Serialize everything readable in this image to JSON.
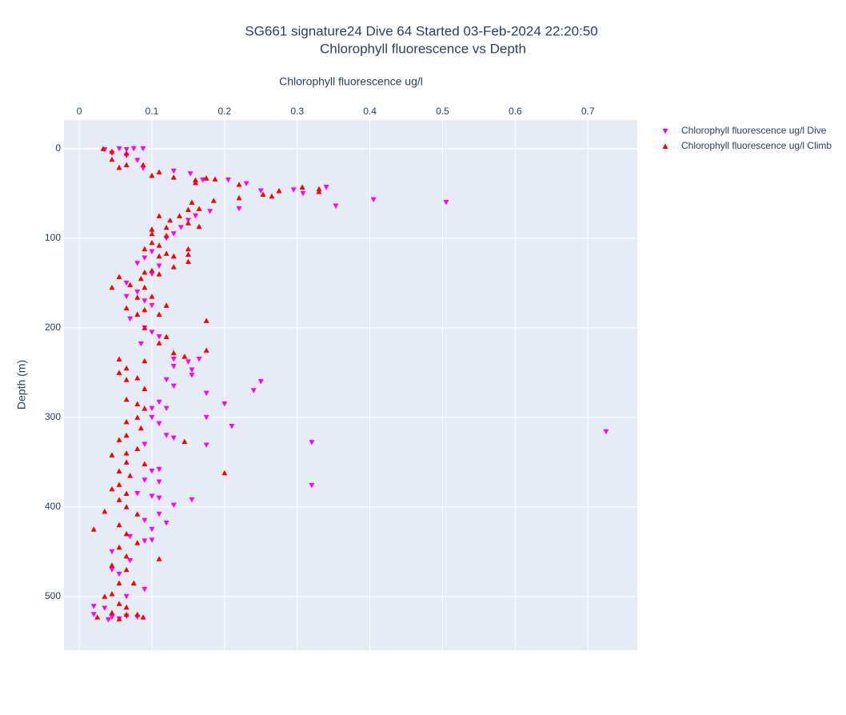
{
  "chart_data": {
    "type": "scatter",
    "title": "SG661 signature24 Dive 64 Started 03-Feb-2024 22:20:50",
    "subtitle": "Chlorophyll fluorescence vs Depth",
    "x_label": "Chlorophyll fluorescence ug/l",
    "y_label": "Depth (m)",
    "xlim": [
      -0.021,
      0.768
    ],
    "ylim": [
      560,
      -32
    ],
    "xticks": [
      0,
      0.1,
      0.2,
      0.3,
      0.4,
      0.5,
      0.6,
      0.7
    ],
    "yticks": [
      0,
      100,
      200,
      300,
      400,
      500
    ],
    "x_axis_side": "top",
    "y_reversed": true,
    "grid": true,
    "legend": "right",
    "series": [
      {
        "name": "Chlorophyll fluorescence ug/l Dive",
        "color": "#ff00ff",
        "symbol": "triangle-down",
        "x": [
          0.035,
          0.055,
          0.065,
          0.075,
          0.088,
          0.045,
          0.065,
          0.08,
          0.088,
          0.13,
          0.153,
          0.17,
          0.205,
          0.23,
          0.25,
          0.295,
          0.308,
          0.34,
          0.405,
          0.505,
          0.353,
          0.22,
          0.18,
          0.16,
          0.15,
          0.14,
          0.13,
          0.12,
          0.1,
          0.09,
          0.08,
          0.11,
          0.065,
          0.1,
          0.08,
          0.065,
          0.09,
          0.1,
          0.07,
          0.09,
          0.1,
          0.11,
          0.085,
          0.13,
          0.15,
          0.165,
          0.13,
          0.155,
          0.155,
          0.12,
          0.13,
          0.25,
          0.24,
          0.175,
          0.2,
          0.11,
          0.12,
          0.1,
          0.175,
          0.1,
          0.21,
          0.11,
          0.12,
          0.13,
          0.175,
          0.32,
          0.725,
          0.09,
          0.1,
          0.11,
          0.11,
          0.32,
          0.09,
          0.08,
          0.1,
          0.155,
          0.11,
          0.13,
          0.11,
          0.12,
          0.09,
          0.1,
          0.07,
          0.1,
          0.09,
          0.045,
          0.07,
          0.045,
          0.055,
          0.09,
          0.065,
          0.02,
          0.035,
          0.02,
          0.045,
          0.065,
          0.08,
          0.04,
          0.055
        ],
        "y": [
          1,
          0,
          1,
          0,
          0,
          5,
          8,
          13,
          22,
          25,
          28,
          35,
          35,
          39,
          47,
          46,
          50,
          43,
          57,
          60,
          64,
          67,
          70,
          75,
          80,
          88,
          95,
          100,
          115,
          122,
          128,
          131,
          150,
          140,
          160,
          165,
          170,
          175,
          190,
          200,
          205,
          210,
          218,
          235,
          238,
          235,
          243,
          247,
          253,
          258,
          265,
          260,
          270,
          273,
          285,
          283,
          290,
          290,
          300,
          300,
          310,
          307,
          320,
          323,
          331,
          328,
          316,
          330,
          360,
          358,
          372,
          376,
          370,
          385,
          388,
          392,
          390,
          398,
          408,
          418,
          415,
          425,
          433,
          437,
          438,
          450,
          460,
          470,
          475,
          492,
          500,
          511,
          513,
          520,
          523,
          522,
          523,
          526,
          525
        ]
      },
      {
        "name": "Chlorophyll fluorescence ug/l Climb",
        "color": "#ff0000",
        "symbol": "triangle-up",
        "x": [
          0.033,
          0.045,
          0.045,
          0.065,
          0.065,
          0.055,
          0.088,
          0.11,
          0.1,
          0.13,
          0.16,
          0.175,
          0.187,
          0.16,
          0.22,
          0.275,
          0.253,
          0.265,
          0.307,
          0.33,
          0.33,
          0.22,
          0.185,
          0.155,
          0.165,
          0.15,
          0.138,
          0.11,
          0.125,
          0.15,
          0.165,
          0.12,
          0.1,
          0.1,
          0.12,
          0.1,
          0.09,
          0.11,
          0.15,
          0.12,
          0.13,
          0.15,
          0.11,
          0.15,
          0.13,
          0.1,
          0.09,
          0.11,
          0.055,
          0.085,
          0.07,
          0.045,
          0.09,
          0.1,
          0.08,
          0.12,
          0.065,
          0.09,
          0.08,
          0.11,
          0.09,
          0.175,
          0.12,
          0.11,
          0.13,
          0.175,
          0.145,
          0.09,
          0.055,
          0.065,
          0.055,
          0.065,
          0.08,
          0.09,
          0.065,
          0.08,
          0.09,
          0.08,
          0.065,
          0.085,
          0.065,
          0.055,
          0.145,
          0.08,
          0.065,
          0.045,
          0.065,
          0.09,
          0.055,
          0.2,
          0.07,
          0.055,
          0.045,
          0.065,
          0.055,
          0.035,
          0.065,
          0.08,
          0.02,
          0.055,
          0.065,
          0.08,
          0.055,
          0.065,
          0.11,
          0.045,
          0.065,
          0.055,
          0.075,
          0.045,
          0.035,
          0.055,
          0.065,
          0.045,
          0.025,
          0.055,
          0.065,
          0.088,
          0.08
        ],
        "y": [
          0,
          3,
          12,
          5,
          18,
          21,
          18,
          26,
          30,
          32,
          35,
          33,
          34,
          38,
          40,
          47,
          51,
          53,
          43,
          45,
          48,
          55,
          58,
          60,
          67,
          68,
          75,
          75,
          80,
          83,
          87,
          88,
          90,
          95,
          97,
          105,
          112,
          108,
          112,
          117,
          120,
          118,
          120,
          126,
          132,
          136,
          138,
          140,
          143,
          145,
          152,
          155,
          155,
          165,
          166,
          175,
          178,
          180,
          185,
          185,
          200,
          192,
          210,
          217,
          228,
          225,
          232,
          237,
          235,
          245,
          250,
          258,
          256,
          268,
          280,
          285,
          290,
          300,
          305,
          312,
          320,
          325,
          327,
          335,
          340,
          342,
          350,
          352,
          360,
          362,
          365,
          375,
          380,
          385,
          392,
          405,
          400,
          408,
          425,
          420,
          430,
          440,
          445,
          455,
          458,
          465,
          470,
          485,
          485,
          497,
          500,
          508,
          512,
          518,
          523,
          525,
          520,
          523,
          520
        ]
      }
    ]
  }
}
